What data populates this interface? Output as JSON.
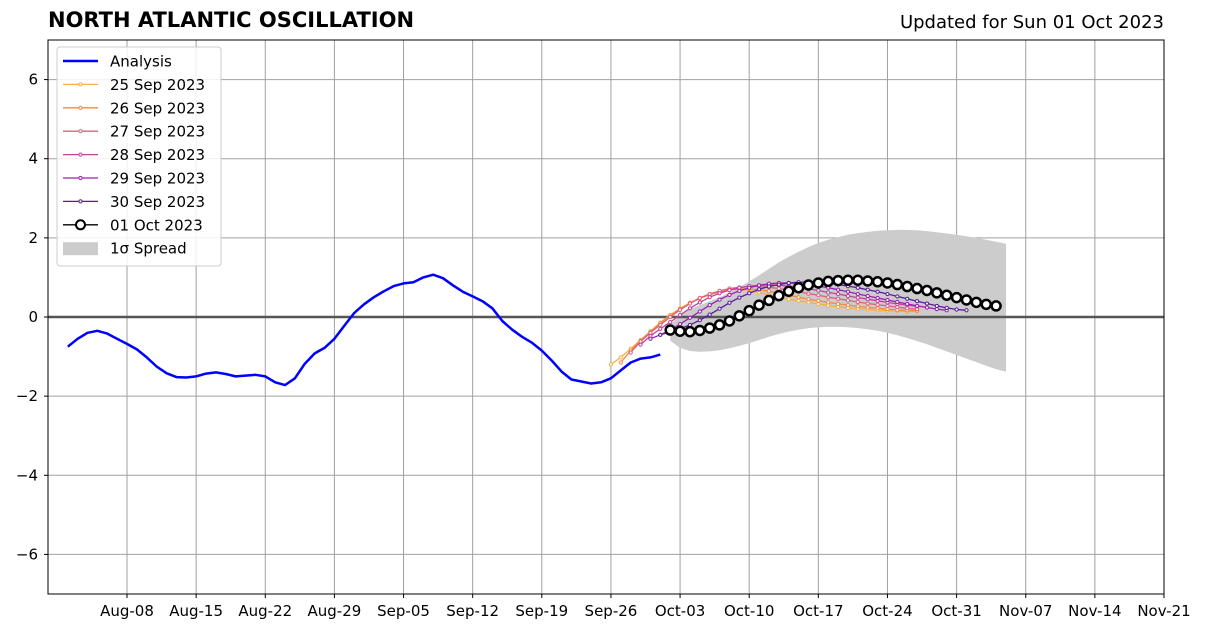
{
  "header": {
    "title": "NORTH ATLANTIC OSCILLATION",
    "updated": "Updated for Sun 01 Oct 2023"
  },
  "colors": {
    "analysis": "#0000ff",
    "grid": "#a0a0a0",
    "spread": "#cccccc",
    "forecasts": [
      "#f5b041",
      "#ef8a47",
      "#e0607e",
      "#c2409b",
      "#9a1fb0",
      "#5b1a9a",
      "#000000"
    ]
  },
  "chart_data": {
    "type": "line",
    "x_axis": {
      "type": "date",
      "range": [
        "2023-07-31",
        "2023-11-21"
      ],
      "tick_labels": [
        "Aug-08",
        "Aug-15",
        "Aug-22",
        "Aug-29",
        "Sep-05",
        "Sep-12",
        "Sep-19",
        "Sep-26",
        "Oct-03",
        "Oct-10",
        "Oct-17",
        "Oct-24",
        "Oct-31",
        "Nov-07",
        "Nov-14",
        "Nov-21"
      ],
      "tick_dates": [
        "2023-08-08",
        "2023-08-15",
        "2023-08-22",
        "2023-08-29",
        "2023-09-05",
        "2023-09-12",
        "2023-09-19",
        "2023-09-26",
        "2023-10-03",
        "2023-10-10",
        "2023-10-17",
        "2023-10-24",
        "2023-10-31",
        "2023-11-07",
        "2023-11-14",
        "2023-11-21"
      ]
    },
    "y_axis": {
      "range": [
        -7,
        7
      ],
      "ticks": [
        -6,
        -4,
        -2,
        0,
        2,
        4,
        6
      ],
      "tick_labels": [
        "−6",
        "−4",
        "−2",
        "0",
        "2",
        "4",
        "6"
      ]
    },
    "grid": true,
    "legend": {
      "placement": "top-left",
      "entries": [
        "Analysis",
        "25 Sep 2023",
        "26 Sep 2023",
        "27 Sep 2023",
        "28 Sep 2023",
        "29 Sep 2023",
        "30 Sep 2023",
        "01 Oct 2023",
        "1σ Spread"
      ]
    },
    "analysis": {
      "name": "Analysis",
      "x": [
        "2023-08-02",
        "2023-08-03",
        "2023-08-04",
        "2023-08-05",
        "2023-08-06",
        "2023-08-07",
        "2023-08-08",
        "2023-08-09",
        "2023-08-10",
        "2023-08-11",
        "2023-08-12",
        "2023-08-13",
        "2023-08-14",
        "2023-08-15",
        "2023-08-16",
        "2023-08-17",
        "2023-08-18",
        "2023-08-19",
        "2023-08-20",
        "2023-08-21",
        "2023-08-22",
        "2023-08-23",
        "2023-08-24",
        "2023-08-25",
        "2023-08-26",
        "2023-08-27",
        "2023-08-28",
        "2023-08-29",
        "2023-08-30",
        "2023-08-31",
        "2023-09-01",
        "2023-09-02",
        "2023-09-03",
        "2023-09-04",
        "2023-09-05",
        "2023-09-06",
        "2023-09-07",
        "2023-09-08",
        "2023-09-09",
        "2023-09-10",
        "2023-09-11",
        "2023-09-12",
        "2023-09-13",
        "2023-09-14",
        "2023-09-15",
        "2023-09-16",
        "2023-09-17",
        "2023-09-18",
        "2023-09-19",
        "2023-09-20",
        "2023-09-21",
        "2023-09-22",
        "2023-09-23",
        "2023-09-24",
        "2023-09-25",
        "2023-09-26",
        "2023-09-27",
        "2023-09-28",
        "2023-09-29",
        "2023-09-30",
        "2023-10-01"
      ],
      "y": [
        -0.75,
        -0.55,
        -0.4,
        -0.35,
        -0.42,
        -0.55,
        -0.68,
        -0.82,
        -1.02,
        -1.25,
        -1.42,
        -1.52,
        -1.53,
        -1.5,
        -1.43,
        -1.4,
        -1.44,
        -1.5,
        -1.48,
        -1.46,
        -1.5,
        -1.65,
        -1.72,
        -1.55,
        -1.18,
        -0.92,
        -0.78,
        -0.55,
        -0.22,
        0.1,
        0.32,
        0.5,
        0.65,
        0.78,
        0.85,
        0.88,
        1.0,
        1.07,
        0.98,
        0.8,
        0.64,
        0.52,
        0.4,
        0.22,
        -0.1,
        -0.32,
        -0.5,
        -0.65,
        -0.85,
        -1.1,
        -1.38,
        -1.58,
        -1.63,
        -1.68,
        -1.65,
        -1.55,
        -1.35,
        -1.15,
        -1.05,
        -1.02,
        -0.95
      ]
    },
    "forecasts": [
      {
        "name": "25 Sep 2023",
        "start": "2023-09-26",
        "y": [
          -1.2,
          -1.02,
          -0.8,
          -0.58,
          -0.36,
          -0.14,
          0.05,
          0.22,
          0.36,
          0.48,
          0.58,
          0.66,
          0.7,
          0.7,
          0.67,
          0.62,
          0.56,
          0.5,
          0.45,
          0.41,
          0.37,
          0.33,
          0.29,
          0.26,
          0.23,
          0.21,
          0.19,
          0.17,
          0.16,
          0.15,
          0.14,
          0.14
        ]
      },
      {
        "name": "26 Sep 2023",
        "start": "2023-09-27",
        "y": [
          -1.15,
          -0.85,
          -0.6,
          -0.38,
          -0.16,
          0.04,
          0.2,
          0.35,
          0.47,
          0.56,
          0.63,
          0.68,
          0.71,
          0.71,
          0.69,
          0.65,
          0.6,
          0.55,
          0.5,
          0.45,
          0.41,
          0.37,
          0.33,
          0.3,
          0.27,
          0.24,
          0.22,
          0.2,
          0.18,
          0.17,
          0.16
        ]
      },
      {
        "name": "27 Sep 2023",
        "start": "2023-09-28",
        "y": [
          -0.9,
          -0.62,
          -0.4,
          -0.2,
          0.0,
          0.18,
          0.34,
          0.48,
          0.58,
          0.66,
          0.72,
          0.75,
          0.77,
          0.77,
          0.75,
          0.72,
          0.68,
          0.64,
          0.59,
          0.55,
          0.5,
          0.46,
          0.42,
          0.38,
          0.34,
          0.31,
          0.28,
          0.25,
          0.22,
          0.2
        ]
      },
      {
        "name": "28 Sep 2023",
        "start": "2023-09-29",
        "y": [
          -0.7,
          -0.48,
          -0.3,
          -0.13,
          0.05,
          0.22,
          0.37,
          0.5,
          0.6,
          0.68,
          0.74,
          0.78,
          0.8,
          0.81,
          0.8,
          0.78,
          0.75,
          0.71,
          0.67,
          0.62,
          0.58,
          0.53,
          0.49,
          0.45,
          0.41,
          0.37,
          0.33,
          0.3,
          0.27
        ]
      },
      {
        "name": "29 Sep 2023",
        "start": "2023-09-30",
        "y": [
          -0.55,
          -0.45,
          -0.33,
          -0.18,
          -0.02,
          0.14,
          0.3,
          0.44,
          0.56,
          0.66,
          0.74,
          0.8,
          0.84,
          0.86,
          0.86,
          0.85,
          0.82,
          0.78,
          0.74,
          0.69,
          0.64,
          0.58,
          0.53,
          0.48,
          0.43,
          0.38,
          0.33,
          0.28,
          0.24,
          0.2,
          0.17
        ]
      },
      {
        "name": "30 Sep 2023",
        "start": "2023-10-01",
        "y": [
          -0.45,
          -0.38,
          -0.3,
          -0.2,
          -0.08,
          0.06,
          0.21,
          0.36,
          0.49,
          0.6,
          0.7,
          0.77,
          0.82,
          0.86,
          0.88,
          0.88,
          0.87,
          0.85,
          0.82,
          0.78,
          0.74,
          0.69,
          0.64,
          0.58,
          0.52,
          0.46,
          0.4,
          0.34,
          0.28,
          0.23,
          0.19,
          0.17
        ]
      },
      {
        "name": "01 Oct 2023",
        "start": "2023-10-02",
        "y": [
          -0.33,
          -0.36,
          -0.37,
          -0.34,
          -0.28,
          -0.2,
          -0.1,
          0.03,
          0.16,
          0.3,
          0.42,
          0.54,
          0.65,
          0.74,
          0.81,
          0.86,
          0.9,
          0.92,
          0.93,
          0.93,
          0.91,
          0.89,
          0.86,
          0.82,
          0.77,
          0.72,
          0.67,
          0.61,
          0.55,
          0.49,
          0.43,
          0.37,
          0.32,
          0.28
        ]
      }
    ],
    "spread": {
      "name": "1σ Spread",
      "start": "2023-10-02",
      "upper": [
        -0.2,
        0.05,
        0.2,
        0.3,
        0.4,
        0.5,
        0.62,
        0.75,
        0.9,
        1.05,
        1.22,
        1.38,
        1.52,
        1.65,
        1.77,
        1.87,
        1.95,
        2.02,
        2.08,
        2.12,
        2.15,
        2.18,
        2.19,
        2.2,
        2.2,
        2.19,
        2.17,
        2.14,
        2.11,
        2.08,
        2.04,
        2.0,
        1.95,
        1.9,
        1.85
      ],
      "lower": [
        -0.6,
        -0.78,
        -0.86,
        -0.88,
        -0.87,
        -0.84,
        -0.79,
        -0.73,
        -0.66,
        -0.58,
        -0.5,
        -0.43,
        -0.37,
        -0.32,
        -0.28,
        -0.26,
        -0.25,
        -0.25,
        -0.26,
        -0.28,
        -0.31,
        -0.35,
        -0.4,
        -0.46,
        -0.53,
        -0.61,
        -0.69,
        -0.78,
        -0.87,
        -0.96,
        -1.05,
        -1.14,
        -1.23,
        -1.32,
        -1.38
      ]
    }
  }
}
